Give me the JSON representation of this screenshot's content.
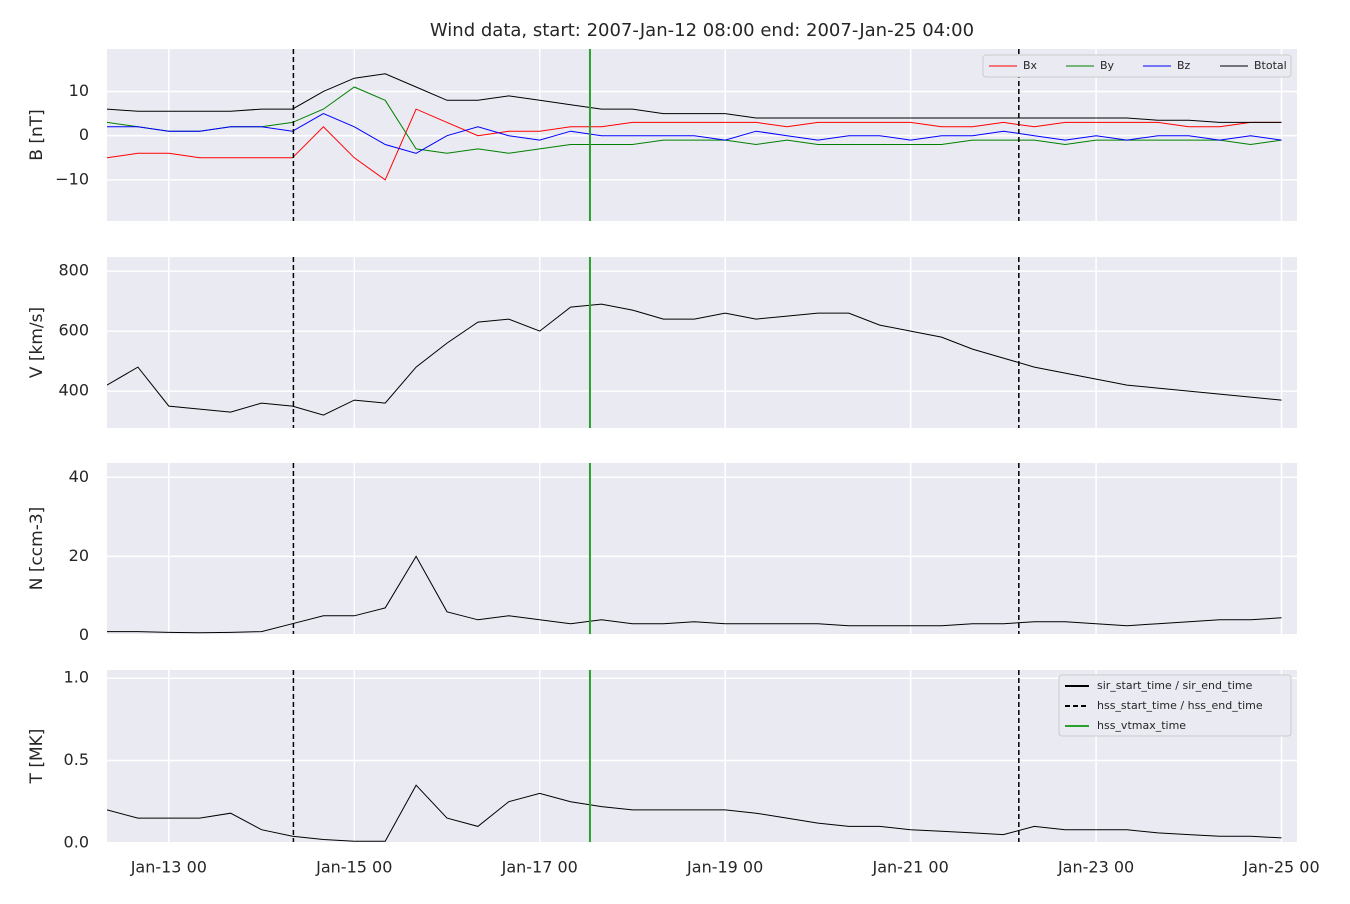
{
  "chart_data": [
    {
      "type": "line",
      "title": "Wind data, start: 2007-Jan-12 08:00  end: 2007-Jan-25 04:00",
      "ylabel": "B [nT]",
      "x": [
        "2007-01-12 08:00",
        "2007-01-12 16:00",
        "2007-01-13 00:00",
        "2007-01-13 08:00",
        "2007-01-13 16:00",
        "2007-01-14 00:00",
        "2007-01-14 08:00",
        "2007-01-14 16:00",
        "2007-01-15 00:00",
        "2007-01-15 08:00",
        "2007-01-15 16:00",
        "2007-01-16 00:00",
        "2007-01-16 08:00",
        "2007-01-16 16:00",
        "2007-01-17 00:00",
        "2007-01-17 08:00",
        "2007-01-17 16:00",
        "2007-01-18 00:00",
        "2007-01-18 08:00",
        "2007-01-18 16:00",
        "2007-01-19 00:00",
        "2007-01-19 08:00",
        "2007-01-19 16:00",
        "2007-01-20 00:00",
        "2007-01-20 08:00",
        "2007-01-20 16:00",
        "2007-01-21 00:00",
        "2007-01-21 08:00",
        "2007-01-21 16:00",
        "2007-01-22 00:00",
        "2007-01-22 08:00",
        "2007-01-22 16:00",
        "2007-01-23 00:00",
        "2007-01-23 08:00",
        "2007-01-23 16:00",
        "2007-01-24 00:00",
        "2007-01-24 08:00",
        "2007-01-24 16:00",
        "2007-01-25 00:00"
      ],
      "series": [
        {
          "name": "Bx",
          "color": "#ff0000",
          "values": [
            -5,
            -4,
            -4,
            -5,
            -5,
            -5,
            -5,
            2,
            -5,
            -10,
            6,
            3,
            0,
            1,
            1,
            2,
            2,
            3,
            3,
            3,
            3,
            3,
            2,
            3,
            3,
            3,
            3,
            2,
            2,
            3,
            2,
            3,
            3,
            3,
            3,
            2,
            2,
            3,
            3
          ]
        },
        {
          "name": "By",
          "color": "#008000",
          "values": [
            3,
            2,
            1,
            1,
            2,
            2,
            3,
            6,
            11,
            8,
            -3,
            -4,
            -3,
            -4,
            -3,
            -2,
            -2,
            -2,
            -1,
            -1,
            -1,
            -2,
            -1,
            -2,
            -2,
            -2,
            -2,
            -2,
            -1,
            -1,
            -1,
            -2,
            -1,
            -1,
            -1,
            -1,
            -1,
            -2,
            -1
          ]
        },
        {
          "name": "Bz",
          "color": "#0000ff",
          "values": [
            2,
            2,
            1,
            1,
            2,
            2,
            1,
            5,
            2,
            -2,
            -4,
            0,
            2,
            0,
            -1,
            1,
            0,
            0,
            0,
            0,
            -1,
            1,
            0,
            -1,
            0,
            0,
            -1,
            0,
            0,
            1,
            0,
            -1,
            0,
            -1,
            0,
            0,
            -1,
            0,
            -1
          ]
        },
        {
          "name": "Btotal",
          "color": "#000000",
          "values": [
            6,
            5.5,
            5.5,
            5.5,
            5.5,
            6,
            6,
            10,
            13,
            14,
            11,
            8,
            8,
            9,
            8,
            7,
            6,
            6,
            5,
            5,
            5,
            4,
            4,
            4,
            4,
            4,
            4,
            4,
            4,
            4,
            4,
            4,
            4,
            4,
            3.5,
            3.5,
            3,
            3,
            3
          ]
        }
      ],
      "xlim": [
        "2007-01-12 08:00",
        "2007-01-25 04:00"
      ],
      "ylim": [
        -19.3,
        19.6
      ],
      "yticks": [
        {
          "value": -10,
          "label": "−10"
        },
        0,
        10
      ]
    },
    {
      "type": "line",
      "ylabel": "V [km/s]",
      "x": [
        "2007-01-12 08:00",
        "2007-01-12 16:00",
        "2007-01-13 00:00",
        "2007-01-13 08:00",
        "2007-01-13 16:00",
        "2007-01-14 00:00",
        "2007-01-14 08:00",
        "2007-01-14 16:00",
        "2007-01-15 00:00",
        "2007-01-15 08:00",
        "2007-01-15 16:00",
        "2007-01-16 00:00",
        "2007-01-16 08:00",
        "2007-01-16 16:00",
        "2007-01-17 00:00",
        "2007-01-17 08:00",
        "2007-01-17 16:00",
        "2007-01-18 00:00",
        "2007-01-18 08:00",
        "2007-01-18 16:00",
        "2007-01-19 00:00",
        "2007-01-19 08:00",
        "2007-01-19 16:00",
        "2007-01-20 00:00",
        "2007-01-20 08:00",
        "2007-01-20 16:00",
        "2007-01-21 00:00",
        "2007-01-21 08:00",
        "2007-01-21 16:00",
        "2007-01-22 00:00",
        "2007-01-22 08:00",
        "2007-01-22 16:00",
        "2007-01-23 00:00",
        "2007-01-23 08:00",
        "2007-01-23 16:00",
        "2007-01-24 00:00",
        "2007-01-24 08:00",
        "2007-01-24 16:00",
        "2007-01-25 00:00"
      ],
      "series": [
        {
          "color": "#000000",
          "values": [
            420,
            480,
            350,
            340,
            330,
            360,
            350,
            320,
            370,
            360,
            480,
            560,
            630,
            640,
            600,
            680,
            690,
            670,
            640,
            640,
            660,
            640,
            650,
            660,
            660,
            620,
            600,
            580,
            540,
            510,
            480,
            460,
            440,
            420,
            410,
            400,
            390,
            380,
            370
          ]
        }
      ],
      "xlim": [
        "2007-01-12 08:00",
        "2007-01-25 04:00"
      ],
      "ylim": [
        277,
        847
      ],
      "yticks": [
        400,
        600,
        800
      ]
    },
    {
      "type": "line",
      "ylabel": "N [ccm-3]",
      "x": [
        "2007-01-12 08:00",
        "2007-01-12 16:00",
        "2007-01-13 00:00",
        "2007-01-13 08:00",
        "2007-01-13 16:00",
        "2007-01-14 00:00",
        "2007-01-14 08:00",
        "2007-01-14 16:00",
        "2007-01-15 00:00",
        "2007-01-15 08:00",
        "2007-01-15 16:00",
        "2007-01-16 00:00",
        "2007-01-16 08:00",
        "2007-01-16 16:00",
        "2007-01-17 00:00",
        "2007-01-17 08:00",
        "2007-01-17 16:00",
        "2007-01-18 00:00",
        "2007-01-18 08:00",
        "2007-01-18 16:00",
        "2007-01-19 00:00",
        "2007-01-19 08:00",
        "2007-01-19 16:00",
        "2007-01-20 00:00",
        "2007-01-20 08:00",
        "2007-01-20 16:00",
        "2007-01-21 00:00",
        "2007-01-21 08:00",
        "2007-01-21 16:00",
        "2007-01-22 00:00",
        "2007-01-22 08:00",
        "2007-01-22 16:00",
        "2007-01-23 00:00",
        "2007-01-23 08:00",
        "2007-01-23 16:00",
        "2007-01-24 00:00",
        "2007-01-24 08:00",
        "2007-01-24 16:00",
        "2007-01-25 00:00"
      ],
      "series": [
        {
          "color": "#000000",
          "values": [
            1,
            1,
            0.8,
            0.7,
            0.8,
            1,
            3,
            5,
            5,
            7,
            20,
            6,
            4,
            5,
            4,
            3,
            4,
            3,
            3,
            3.5,
            3,
            3,
            3,
            3,
            2.5,
            2.5,
            2.5,
            2.5,
            3,
            3,
            3.5,
            3.5,
            3,
            2.5,
            3,
            3.5,
            4,
            4,
            4.5
          ]
        }
      ],
      "xlim": [
        "2007-01-12 08:00",
        "2007-01-25 04:00"
      ],
      "ylim": [
        0.4,
        43.6
      ],
      "yticks": [
        0,
        20,
        40
      ]
    },
    {
      "type": "line",
      "ylabel": "T [MK]",
      "x": [
        "2007-01-12 08:00",
        "2007-01-12 16:00",
        "2007-01-13 00:00",
        "2007-01-13 08:00",
        "2007-01-13 16:00",
        "2007-01-14 00:00",
        "2007-01-14 08:00",
        "2007-01-14 16:00",
        "2007-01-15 00:00",
        "2007-01-15 08:00",
        "2007-01-15 16:00",
        "2007-01-16 00:00",
        "2007-01-16 08:00",
        "2007-01-16 16:00",
        "2007-01-17 00:00",
        "2007-01-17 08:00",
        "2007-01-17 16:00",
        "2007-01-18 00:00",
        "2007-01-18 08:00",
        "2007-01-18 16:00",
        "2007-01-19 00:00",
        "2007-01-19 08:00",
        "2007-01-19 16:00",
        "2007-01-20 00:00",
        "2007-01-20 08:00",
        "2007-01-20 16:00",
        "2007-01-21 00:00",
        "2007-01-21 08:00",
        "2007-01-21 16:00",
        "2007-01-22 00:00",
        "2007-01-22 08:00",
        "2007-01-22 16:00",
        "2007-01-23 00:00",
        "2007-01-23 08:00",
        "2007-01-23 16:00",
        "2007-01-24 00:00",
        "2007-01-24 08:00",
        "2007-01-24 16:00",
        "2007-01-25 00:00"
      ],
      "series": [
        {
          "color": "#000000",
          "values": [
            0.2,
            0.15,
            0.15,
            0.15,
            0.18,
            0.08,
            0.04,
            0.02,
            0.01,
            0.01,
            0.35,
            0.15,
            0.1,
            0.25,
            0.3,
            0.25,
            0.22,
            0.2,
            0.2,
            0.2,
            0.2,
            0.18,
            0.15,
            0.12,
            0.1,
            0.1,
            0.08,
            0.07,
            0.06,
            0.05,
            0.1,
            0.08,
            0.08,
            0.08,
            0.06,
            0.05,
            0.04,
            0.04,
            0.03
          ]
        }
      ],
      "xlim": [
        "2007-01-12 08:00",
        "2007-01-25 04:00"
      ],
      "ylim": [
        0.005,
        1.05
      ],
      "yticks": [
        {
          "value": 0,
          "label": "0.0"
        },
        0.5,
        {
          "value": 1,
          "label": "1.0"
        }
      ],
      "xticks": [
        {
          "value": "2007-01-13 00:00",
          "label": "Jan-13 00"
        },
        {
          "value": "2007-01-15 00:00",
          "label": "Jan-15 00"
        },
        {
          "value": "2007-01-17 00:00",
          "label": "Jan-17 00"
        },
        {
          "value": "2007-01-19 00:00",
          "label": "Jan-19 00"
        },
        {
          "value": "2007-01-21 00:00",
          "label": "Jan-21 00"
        },
        {
          "value": "2007-01-23 00:00",
          "label": "Jan-23 00"
        },
        {
          "value": "2007-01-25 00:00",
          "label": "Jan-25 00"
        }
      ],
      "event_lines": [
        {
          "name": "sir_start_time / sir_end_time",
          "color": "#000000",
          "dashed": false,
          "x": []
        },
        {
          "name": "hss_start_time / hss_end_time",
          "color": "#000000",
          "dashed": true,
          "x": [
            "2007-01-14 08:15",
            "2007-01-22 04:00"
          ]
        },
        {
          "name": "hss_vtmax_time",
          "color": "#2ca02c",
          "dashed": false,
          "x": [
            "2007-01-17 13:00"
          ]
        }
      ]
    }
  ]
}
